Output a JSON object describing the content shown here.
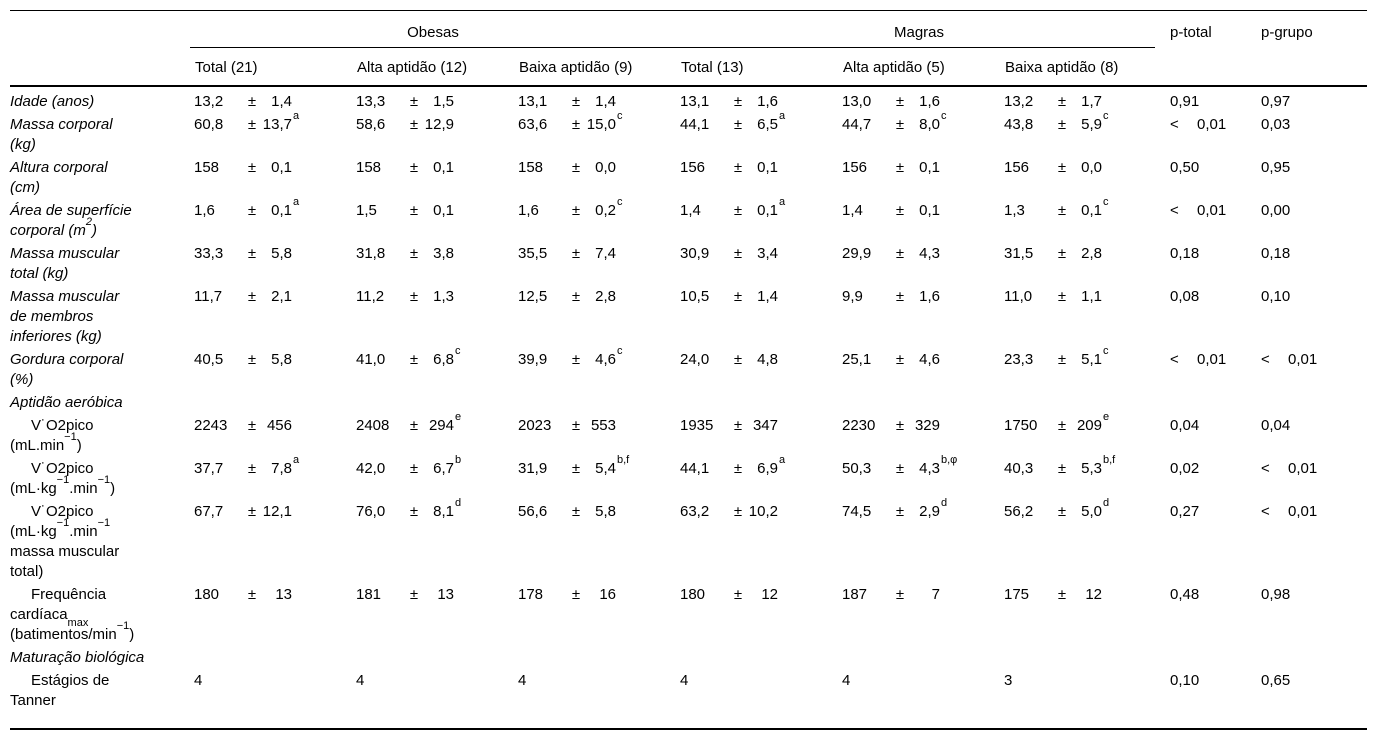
{
  "table": {
    "pm_symbol": "±",
    "lt_symbol": "<",
    "groups": [
      {
        "label": "Obesas",
        "columns": [
          "Total (21)",
          "Alta aptidão (12)",
          "Baixa aptidão (9)"
        ]
      },
      {
        "label": "Magras",
        "columns": [
          "Total (13)",
          "Alta aptidão (5)",
          "Baixa aptidão (8)"
        ]
      }
    ],
    "p_columns": [
      "p-total",
      "p-grupo"
    ],
    "rows": [
      {
        "type": "data",
        "italic": true,
        "label_lines": [
          "Idade (anos)"
        ],
        "cells": [
          {
            "m": "13,2",
            "sd": "1,4"
          },
          {
            "m": "13,3",
            "sd": "1,5"
          },
          {
            "m": "13,1",
            "sd": "1,4"
          },
          {
            "m": "13,1",
            "sd": "1,6"
          },
          {
            "m": "13,0",
            "sd": "1,6"
          },
          {
            "m": "13,2",
            "sd": "1,7"
          }
        ],
        "p": [
          {
            "v": "0,91"
          },
          {
            "v": "0,97"
          }
        ]
      },
      {
        "type": "data",
        "italic": true,
        "label_lines": [
          "Massa corporal",
          "(kg)"
        ],
        "cells": [
          {
            "m": "60,8",
            "sd": "13,7",
            "sup": "a"
          },
          {
            "m": "58,6",
            "sd": "12,9"
          },
          {
            "m": "63,6",
            "sd": "15,0",
            "sup": "c"
          },
          {
            "m": "44,1",
            "sd": "6,5",
            "sup": "a"
          },
          {
            "m": "44,7",
            "sd": "8,0",
            "sup": "c"
          },
          {
            "m": "43,8",
            "sd": "5,9",
            "sup": "c"
          }
        ],
        "p": [
          {
            "lt": true,
            "v": "0,01"
          },
          {
            "v": "0,03"
          }
        ]
      },
      {
        "type": "data",
        "italic": true,
        "label_lines": [
          "Altura corporal",
          "(cm)"
        ],
        "cells": [
          {
            "m": "158",
            "sd": "0,1"
          },
          {
            "m": "158",
            "sd": "0,1"
          },
          {
            "m": "158",
            "sd": "0,0"
          },
          {
            "m": "156",
            "sd": "0,1"
          },
          {
            "m": "156",
            "sd": "0,1"
          },
          {
            "m": "156",
            "sd": "0,0"
          }
        ],
        "p": [
          {
            "v": "0,50"
          },
          {
            "v": "0,95"
          }
        ]
      },
      {
        "type": "data",
        "italic": true,
        "label_lines": [
          "Área de superfície",
          "corporal (m^{2})"
        ],
        "cells": [
          {
            "m": "1,6",
            "sd": "0,1",
            "sup": "a"
          },
          {
            "m": "1,5",
            "sd": "0,1"
          },
          {
            "m": "1,6",
            "sd": "0,2",
            "sup": "c"
          },
          {
            "m": "1,4",
            "sd": "0,1",
            "sup": "a"
          },
          {
            "m": "1,4",
            "sd": "0,1"
          },
          {
            "m": "1,3",
            "sd": "0,1",
            "sup": "c"
          }
        ],
        "p": [
          {
            "lt": true,
            "v": "0,01"
          },
          {
            "v": "0,00"
          }
        ]
      },
      {
        "type": "data",
        "italic": true,
        "label_lines": [
          "Massa muscular",
          "total (kg)"
        ],
        "cells": [
          {
            "m": "33,3",
            "sd": "5,8"
          },
          {
            "m": "31,8",
            "sd": "3,8"
          },
          {
            "m": "35,5",
            "sd": "7,4"
          },
          {
            "m": "30,9",
            "sd": "3,4"
          },
          {
            "m": "29,9",
            "sd": "4,3"
          },
          {
            "m": "31,5",
            "sd": "2,8"
          }
        ],
        "p": [
          {
            "v": "0,18"
          },
          {
            "v": "0,18"
          }
        ]
      },
      {
        "type": "data",
        "italic": true,
        "label_lines": [
          "Massa muscular",
          "de membros",
          "inferiores (kg)"
        ],
        "cells": [
          {
            "m": "11,7",
            "sd": "2,1"
          },
          {
            "m": "11,2",
            "sd": "1,3"
          },
          {
            "m": "12,5",
            "sd": "2,8"
          },
          {
            "m": "10,5",
            "sd": "1,4"
          },
          {
            "m": "9,9",
            "sd": "1,6"
          },
          {
            "m": "11,0",
            "sd": "1,1"
          }
        ],
        "p": [
          {
            "v": "0,08"
          },
          {
            "v": "0,10"
          }
        ]
      },
      {
        "type": "data",
        "italic": true,
        "label_lines": [
          "Gordura corporal",
          "(%)"
        ],
        "cells": [
          {
            "m": "40,5",
            "sd": "5,8"
          },
          {
            "m": "41,0",
            "sd": "6,8",
            "sup": "c"
          },
          {
            "m": "39,9",
            "sd": "4,6",
            "sup": "c"
          },
          {
            "m": "24,0",
            "sd": "4,8"
          },
          {
            "m": "25,1",
            "sd": "4,6"
          },
          {
            "m": "23,3",
            "sd": "5,1",
            "sup": "c"
          }
        ],
        "p": [
          {
            "lt": true,
            "v": "0,01"
          },
          {
            "lt": true,
            "v": "0,01"
          }
        ]
      },
      {
        "type": "section",
        "label": "Aptidão aeróbica"
      },
      {
        "type": "data",
        "indent": true,
        "label_lines": [
          "V˙O2pico",
          "(mL.min^{−1})"
        ],
        "cells": [
          {
            "m": "2243",
            "sd": "456"
          },
          {
            "m": "2408",
            "sd": "294",
            "sup": "e"
          },
          {
            "m": "2023",
            "sd": "553"
          },
          {
            "m": "1935",
            "sd": "347"
          },
          {
            "m": "2230",
            "sd": "329"
          },
          {
            "m": "1750",
            "sd": "209",
            "sup": "e"
          }
        ],
        "p": [
          {
            "v": "0,04"
          },
          {
            "v": "0,04"
          }
        ]
      },
      {
        "type": "data",
        "indent": true,
        "label_lines": [
          "V˙O2pico",
          "(mL·kg^{−1}.min^{−1})"
        ],
        "cells": [
          {
            "m": "37,7",
            "sd": "7,8",
            "sup": "a"
          },
          {
            "m": "42,0",
            "sd": "6,7",
            "sup": "b"
          },
          {
            "m": "31,9",
            "sd": "5,4",
            "sup": "b,f"
          },
          {
            "m": "44,1",
            "sd": "6,9",
            "sup": "a"
          },
          {
            "m": "50,3",
            "sd": "4,3",
            "sup": "b,φ"
          },
          {
            "m": "40,3",
            "sd": "5,3",
            "sup": "b,f"
          }
        ],
        "p": [
          {
            "v": "0,02"
          },
          {
            "lt": true,
            "v": "0,01"
          }
        ]
      },
      {
        "type": "data",
        "indent": true,
        "label_lines": [
          "V˙O2pico",
          "(mL·kg^{−1}.min^{−1}",
          "massa muscular",
          "total)"
        ],
        "cells": [
          {
            "m": "67,7",
            "sd": "12,1"
          },
          {
            "m": "76,0",
            "sd": "8,1",
            "sup": "d"
          },
          {
            "m": "56,6",
            "sd": "5,8"
          },
          {
            "m": "63,2",
            "sd": "10,2"
          },
          {
            "m": "74,5",
            "sd": "2,9",
            "sup": "d"
          },
          {
            "m": "56,2",
            "sd": "5,0",
            "sup": "d"
          }
        ],
        "p": [
          {
            "v": "0,27"
          },
          {
            "lt": true,
            "v": "0,01"
          }
        ]
      },
      {
        "type": "data",
        "indent": true,
        "label_lines": [
          "Frequência",
          "cardíaca_{max}",
          "(batimentos/min^{−1})"
        ],
        "cells": [
          {
            "m": "180",
            "sd": "13"
          },
          {
            "m": "181",
            "sd": "13"
          },
          {
            "m": "178",
            "sd": "16"
          },
          {
            "m": "180",
            "sd": "12"
          },
          {
            "m": "187",
            "sd": "7"
          },
          {
            "m": "175",
            "sd": "12"
          }
        ],
        "p": [
          {
            "v": "0,48"
          },
          {
            "v": "0,98"
          }
        ]
      },
      {
        "type": "section",
        "label": "Maturação biológica"
      },
      {
        "type": "data",
        "indent": true,
        "label_lines": [
          "Estágios de",
          "Tanner"
        ],
        "cells": [
          {
            "m": "4"
          },
          {
            "m": "4"
          },
          {
            "m": "4"
          },
          {
            "m": "4"
          },
          {
            "m": "4"
          },
          {
            "m": "3"
          }
        ],
        "p": [
          {
            "v": "0,10"
          },
          {
            "v": "0,65"
          }
        ]
      }
    ]
  }
}
